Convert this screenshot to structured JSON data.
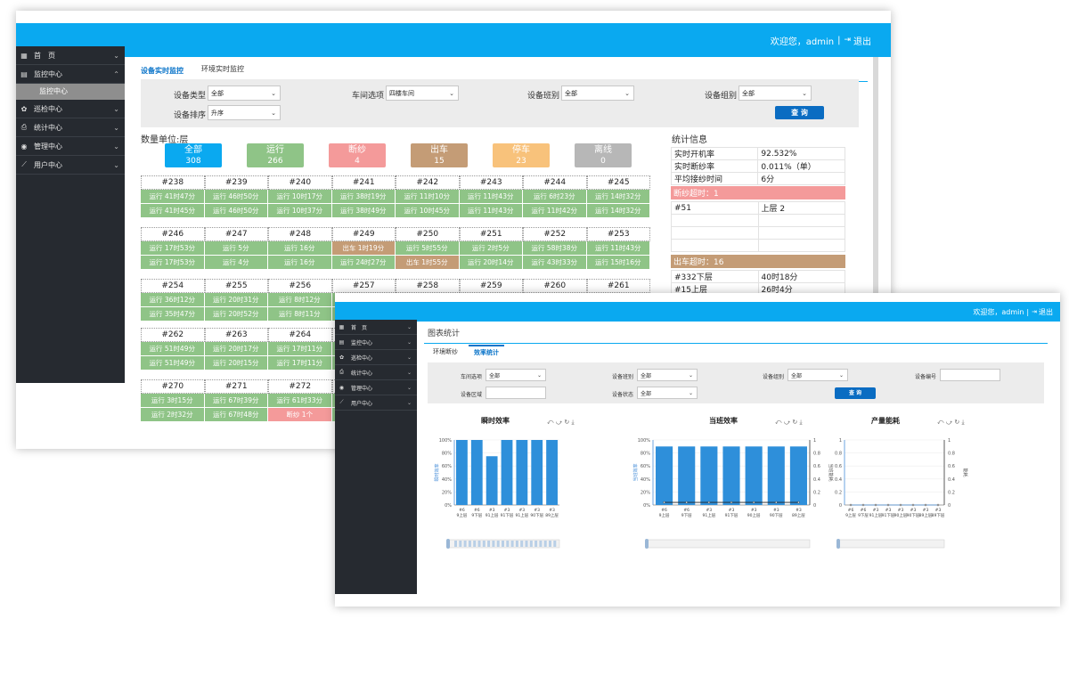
{
  "header": {
    "welcome": "欢迎您，admin",
    "sep": "|",
    "logout_icon": "logout-icon",
    "logout": "退出"
  },
  "sidebar": {
    "items": [
      {
        "icon": "dashboard-icon",
        "label": "首　页"
      },
      {
        "icon": "calendar-icon",
        "label": "监控中心"
      },
      {
        "icon": "gear-icon",
        "label": "巡检中心"
      },
      {
        "icon": "print-icon",
        "label": "统计中心"
      },
      {
        "icon": "admin-icon",
        "label": "管理中心"
      },
      {
        "icon": "chart-icon",
        "label": "用户中心"
      }
    ],
    "sub_item": "监控中心"
  },
  "monitor": {
    "tabs": [
      "设备实时监控",
      "环境实时监控"
    ],
    "filters": {
      "type_label": "设备类型",
      "type_value": "全部",
      "workshop_label": "车间选项",
      "workshop_value": "四楼车间",
      "shift_label": "设备班别",
      "shift_value": "全部",
      "group_label": "设备组别",
      "group_value": "全部",
      "sort_label": "设备排序",
      "sort_value": "升序",
      "query": "查 询"
    },
    "unit": "数量单位:层",
    "stats": [
      {
        "label": "全部",
        "value": "308",
        "color": "#0aa9f0"
      },
      {
        "label": "运行",
        "value": "266",
        "color": "#8fc487"
      },
      {
        "label": "断纱",
        "value": "4",
        "color": "#f49a9a"
      },
      {
        "label": "出车",
        "value": "15",
        "color": "#c49c76"
      },
      {
        "label": "停车",
        "value": "23",
        "color": "#f8c27b"
      },
      {
        "label": "离线",
        "value": "0",
        "color": "#b7b7b7"
      }
    ],
    "blocks": [
      {
        "ids": [
          "#238",
          "#239",
          "#240",
          "#241",
          "#242",
          "#243",
          "#244",
          "#245"
        ],
        "r1": [
          "运行 41时47分",
          "运行 46时50分",
          "运行 10时17分",
          "运行 38时19分",
          "运行 11时10分",
          "运行 11时43分",
          "运行 6时23分",
          "运行 14时32分"
        ],
        "r2": [
          "运行 41时45分",
          "运行 46时50分",
          "运行 10时37分",
          "运行 38时49分",
          "运行 10时45分",
          "运行 11时43分",
          "运行 11时42分",
          "运行 14时32分"
        ],
        "t1": [
          "run",
          "run",
          "run",
          "run",
          "run",
          "run",
          "run",
          "run"
        ],
        "t2": [
          "run",
          "run",
          "run",
          "run",
          "run",
          "run",
          "run",
          "run"
        ]
      },
      {
        "ids": [
          "#246",
          "#247",
          "#248",
          "#249",
          "#250",
          "#251",
          "#252",
          "#253"
        ],
        "r1": [
          "运行 17时53分",
          "运行 5分",
          "运行 16分",
          "出车 1时19分",
          "运行 5时55分",
          "运行 2时5分",
          "运行 58时38分",
          "运行 11时43分"
        ],
        "r2": [
          "运行 17时53分",
          "运行 4分",
          "运行 16分",
          "运行 24时27分",
          "出车 1时55分",
          "运行 20时14分",
          "运行 43时33分",
          "运行 15时16分"
        ],
        "t1": [
          "run",
          "run",
          "run",
          "out",
          "run",
          "run",
          "run",
          "run"
        ],
        "t2": [
          "run",
          "run",
          "run",
          "run",
          "out",
          "run",
          "run",
          "run"
        ]
      },
      {
        "ids": [
          "#254",
          "#255",
          "#256",
          "#257",
          "#258",
          "#259",
          "#260",
          "#261"
        ],
        "r1": [
          "运行 36时12分",
          "运行 20时31分",
          "运行 8时12分",
          "",
          "",
          "",
          "",
          ""
        ],
        "r2": [
          "运行 35时47分",
          "运行 20时52分",
          "运行 8时11分",
          "",
          "",
          "",
          "",
          ""
        ],
        "t1": [
          "run",
          "run",
          "run",
          "run",
          "run",
          "run",
          "run",
          "run"
        ],
        "t2": [
          "run",
          "run",
          "run",
          "run",
          "run",
          "run",
          "run",
          "run"
        ]
      },
      {
        "ids": [
          "#262",
          "#263",
          "#264",
          "",
          "",
          "",
          "",
          ""
        ],
        "r1": [
          "运行 51时49分",
          "运行 20时17分",
          "运行 17时11分",
          "",
          "",
          "",
          "",
          ""
        ],
        "r2": [
          "运行 51时49分",
          "运行 20时15分",
          "运行 17时11分",
          "",
          "",
          "",
          "",
          ""
        ],
        "t1": [
          "run",
          "run",
          "run",
          "run",
          "run",
          "run",
          "run",
          "run"
        ],
        "t2": [
          "run",
          "run",
          "run",
          "run",
          "run",
          "run",
          "run",
          "run"
        ]
      },
      {
        "ids": [
          "#270",
          "#271",
          "#272",
          "",
          "",
          "",
          "",
          ""
        ],
        "r1": [
          "运行 3时15分",
          "运行 67时39分",
          "运行 61时33分",
          "",
          "",
          "",
          "",
          ""
        ],
        "r2": [
          "运行 2时32分",
          "运行 67时48分",
          "断纱 1个",
          "",
          "",
          "",
          "",
          ""
        ],
        "t1": [
          "run",
          "run",
          "run",
          "run",
          "run",
          "run",
          "run",
          "run"
        ],
        "t2": [
          "run",
          "run",
          "brk",
          "run",
          "run",
          "run",
          "run",
          "run"
        ]
      }
    ],
    "info": {
      "title": "统计信息",
      "rows": [
        [
          "实时开机率",
          "92.532%"
        ],
        [
          "实时断纱率",
          "0.011%（单）"
        ],
        [
          "平均接纱时间",
          "6分"
        ]
      ],
      "break_band": "断纱超时：1",
      "break_rows": [
        [
          "#51",
          "上层 2"
        ],
        [
          "",
          ""
        ],
        [
          "",
          ""
        ],
        [
          "",
          ""
        ]
      ],
      "out_band": "出车超时：16",
      "out_rows": [
        [
          "#332下层",
          "40时18分"
        ],
        [
          "#15上层",
          "26时4分"
        ]
      ]
    }
  },
  "stats_win": {
    "title": "图表统计",
    "tabs": [
      "环境断纱",
      "效率统计"
    ],
    "filters": {
      "workshop_label": "车间选项",
      "workshop_value": "全部",
      "shift_label": "设备班别",
      "shift_value": "全部",
      "group_label": "设备组别",
      "group_value": "全部",
      "code_label": "设备编号",
      "code_value": "",
      "range_label": "设备区域",
      "range_value": "",
      "status_label": "设备状态",
      "status_value": "全部",
      "query": "查 询"
    },
    "toolbar": "⤺ ⤻ ↻ ⤓"
  },
  "chart_data": [
    {
      "type": "bar",
      "title": "瞬时效率",
      "ylabel": "瞬时效率",
      "categories": [
        "#6 9上层",
        "#6 9下层",
        "#3 91上层",
        "#3 91下层",
        "#3 91上层",
        "#3 90下层",
        "#3 89上层"
      ],
      "values": [
        100,
        100,
        75,
        100,
        100,
        100,
        100
      ],
      "yticks": [
        "0%",
        "20%",
        "40%",
        "60%",
        "80%",
        "100%"
      ],
      "ylim": [
        0,
        100
      ]
    },
    {
      "type": "bar",
      "title": "当班效率",
      "ylabel": "当班效率",
      "y2label": "当班能耗",
      "categories": [
        "#6 9上层",
        "#6 9下层",
        "#3 91上层",
        "#3 91下层",
        "#3 90上层",
        "#3 90下层",
        "#3 89上层"
      ],
      "values": [
        90,
        90,
        90,
        90,
        90,
        90,
        90
      ],
      "line_values": [
        0.04,
        0.04,
        0.04,
        0.04,
        0.04,
        0.04,
        0.04
      ],
      "yticks": [
        "0%",
        "20%",
        "40%",
        "60%",
        "80%",
        "100%"
      ],
      "y2ticks": [
        "0",
        "0.2",
        "0.4",
        "0.6",
        "0.8",
        "1"
      ],
      "ylim": [
        0,
        100
      ]
    },
    {
      "type": "line",
      "title": "产量能耗",
      "y2label": "能耗",
      "categories": [
        "#6 9上层",
        "#6 9下层",
        "#3 91上层",
        "#3 91下层",
        "#3 90上层",
        "#3 90下层",
        "#3 89上层",
        "#3 89下层"
      ],
      "values": [
        0,
        0,
        0,
        0,
        0,
        0,
        0,
        0
      ],
      "yticks": [
        "0",
        "0.2",
        "0.4",
        "0.6",
        "0.8",
        "1"
      ],
      "ylim": [
        0,
        1
      ]
    }
  ]
}
